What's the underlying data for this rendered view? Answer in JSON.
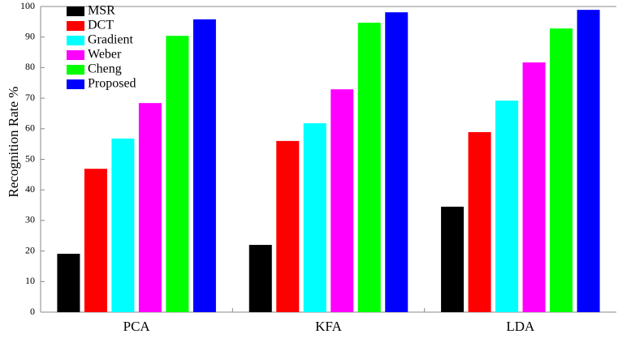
{
  "chart_data": {
    "type": "bar",
    "ylabel": "Recognition Rate  %",
    "categories": [
      "PCA",
      "KFA",
      "LDA"
    ],
    "series": [
      {
        "name": "MSR",
        "color": "#000000",
        "values": [
          19.1,
          22,
          34.5
        ]
      },
      {
        "name": "DCT",
        "color": "#ff0000",
        "values": [
          46.9,
          56,
          58.9
        ]
      },
      {
        "name": "Gradient",
        "color": "#00ffff",
        "values": [
          56.8,
          61.8,
          69.2
        ]
      },
      {
        "name": "Weber",
        "color": "#ff00ff",
        "values": [
          68.4,
          72.9,
          81.7
        ]
      },
      {
        "name": "Cheng",
        "color": "#00ff00",
        "values": [
          90.4,
          94.7,
          92.8
        ]
      },
      {
        "name": "Proposed",
        "color": "#0000ff",
        "values": [
          95.8,
          98.1,
          98.9
        ]
      }
    ],
    "ylim": [
      0,
      100
    ],
    "yticks": [
      0,
      10,
      20,
      30,
      40,
      50,
      60,
      70,
      80,
      90,
      100
    ],
    "legend": "upper-left"
  }
}
